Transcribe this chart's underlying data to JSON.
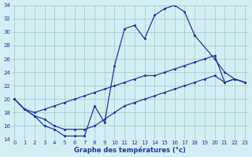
{
  "xlabel": "Graphe des températures (°c)",
  "bg_color": "#d4eef4",
  "grid_color": "#aacccc",
  "line_color": "#1a3a9a",
  "xlim": [
    -0.3,
    23.3
  ],
  "ylim": [
    14,
    34
  ],
  "xticks": [
    0,
    1,
    2,
    3,
    4,
    5,
    6,
    7,
    8,
    9,
    10,
    11,
    12,
    13,
    14,
    15,
    16,
    17,
    18,
    19,
    20,
    21,
    22,
    23
  ],
  "yticks": [
    14,
    16,
    18,
    20,
    22,
    24,
    26,
    28,
    30,
    32,
    34
  ],
  "line1_x": [
    0,
    1,
    2,
    3,
    4,
    5,
    6,
    7,
    8,
    9,
    10,
    11,
    12,
    13,
    14,
    15,
    16,
    17,
    18
  ],
  "line1_y": [
    20,
    18.5,
    17.5,
    16.0,
    15.5,
    14.5,
    14.5,
    14.5,
    19.0,
    16.5,
    25.0,
    30.5,
    31.0,
    29.0,
    32.5,
    33.5,
    34.0,
    33.0,
    29.5
  ],
  "line2_x": [
    0,
    1,
    2,
    3,
    4,
    5,
    6,
    7,
    8,
    9,
    10,
    11,
    12,
    13,
    14,
    15,
    16,
    17,
    18,
    19,
    20,
    21,
    22,
    23
  ],
  "line2_y": [
    20.0,
    18.5,
    18.0,
    18.5,
    19.0,
    19.5,
    20.0,
    20.5,
    21.0,
    21.5,
    22.0,
    22.5,
    23.0,
    23.5,
    23.5,
    24.0,
    24.5,
    25.0,
    25.5,
    26.0,
    26.5,
    22.5,
    23.0,
    22.5
  ],
  "line3_x": [
    0,
    1,
    2,
    3,
    4,
    5,
    6,
    7,
    8,
    9,
    10,
    11,
    12,
    13,
    14,
    15,
    16,
    17,
    18,
    19,
    20,
    21,
    22,
    23
  ],
  "line3_y": [
    20.0,
    18.5,
    17.5,
    17.0,
    16.0,
    15.5,
    15.5,
    15.5,
    16.0,
    17.0,
    18.0,
    19.0,
    19.5,
    20.0,
    20.5,
    21.0,
    21.5,
    22.0,
    22.5,
    23.0,
    23.5,
    22.5,
    23.0,
    22.5
  ],
  "line4_x": [
    18,
    20,
    21,
    22,
    23
  ],
  "line4_y": [
    29.5,
    26.0,
    24.0,
    23.0,
    22.5
  ]
}
